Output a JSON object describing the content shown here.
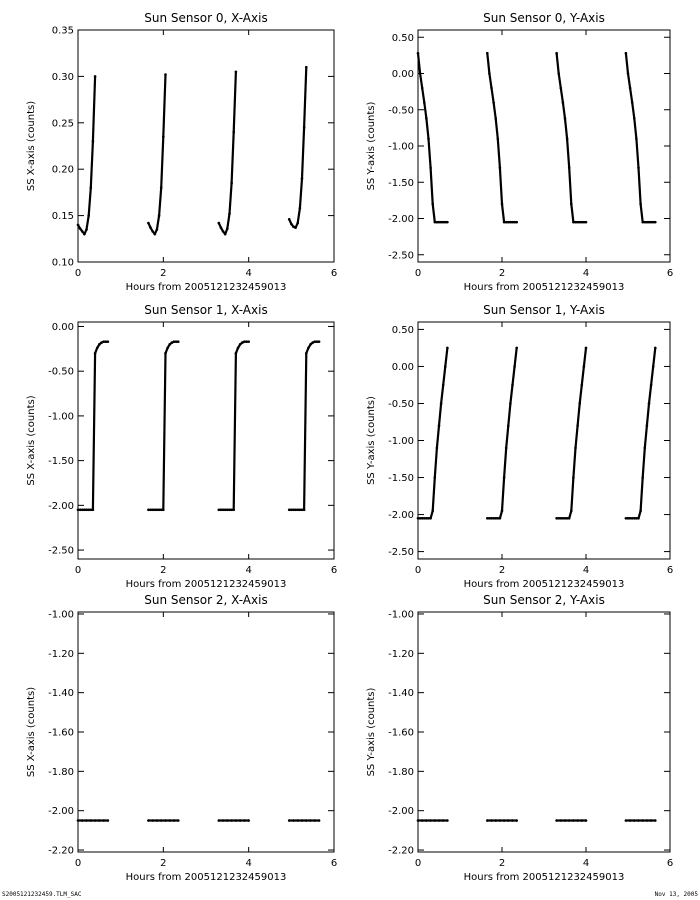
{
  "footer": {
    "file_label": "S2005121232459.TLM_SAC",
    "date_label": "Nov 13, 2005"
  },
  "chart_data": [
    {
      "type": "scatter",
      "title": "Sun Sensor 0, X-Axis",
      "xlabel": "Hours from 2005121232459013",
      "ylabel": "SS X-axis (counts)",
      "xlim": [
        0,
        6
      ],
      "ylim": [
        0.1,
        0.35
      ],
      "xticks": [
        0,
        2,
        4,
        6
      ],
      "xtick_labels": [
        "0",
        "2",
        "4",
        "6"
      ],
      "yticks": [
        0.1,
        0.15,
        0.2,
        0.25,
        0.3,
        0.35
      ],
      "ytick_labels": [
        "0.10",
        "0.15",
        "0.20",
        "0.25",
        "0.30",
        "0.35"
      ],
      "color": "#000000",
      "series": [
        {
          "x": [
            0.0,
            0.05,
            0.1,
            0.15,
            0.2,
            0.25,
            0.3,
            0.35,
            0.4
          ],
          "y": [
            0.14,
            0.136,
            0.133,
            0.13,
            0.135,
            0.15,
            0.18,
            0.23,
            0.3
          ]
        },
        {
          "x": [
            1.65,
            1.7,
            1.75,
            1.8,
            1.85,
            1.9,
            1.95,
            2.0,
            2.05
          ],
          "y": [
            0.142,
            0.137,
            0.133,
            0.13,
            0.135,
            0.15,
            0.18,
            0.235,
            0.302
          ]
        },
        {
          "x": [
            3.3,
            3.35,
            3.4,
            3.45,
            3.5,
            3.55,
            3.6,
            3.65,
            3.7
          ],
          "y": [
            0.142,
            0.137,
            0.133,
            0.13,
            0.136,
            0.152,
            0.185,
            0.24,
            0.305
          ]
        },
        {
          "x": [
            4.95,
            5.0,
            5.05,
            5.1,
            5.15,
            5.2,
            5.25,
            5.3,
            5.35
          ],
          "y": [
            0.146,
            0.141,
            0.138,
            0.137,
            0.142,
            0.158,
            0.19,
            0.245,
            0.31
          ]
        }
      ]
    },
    {
      "type": "scatter",
      "title": "Sun Sensor 0, Y-Axis",
      "xlabel": "Hours from 2005121232459013",
      "ylabel": "SS Y-axis (counts)",
      "xlim": [
        0,
        6
      ],
      "ylim": [
        -2.6,
        0.6
      ],
      "xticks": [
        0,
        2,
        4,
        6
      ],
      "xtick_labels": [
        "0",
        "2",
        "4",
        "6"
      ],
      "yticks": [
        -2.5,
        -2.0,
        -1.5,
        -1.0,
        -0.5,
        0.0,
        0.5
      ],
      "ytick_labels": [
        "-2.50",
        "-2.00",
        "-1.50",
        "-1.00",
        "-0.50",
        "0.00",
        "0.50"
      ],
      "color": "#000000",
      "series": [
        {
          "x": [
            0.0,
            0.05,
            0.1,
            0.15,
            0.2,
            0.25,
            0.3,
            0.35,
            0.4,
            0.45,
            0.5,
            0.55,
            0.6,
            0.65,
            0.7
          ],
          "y": [
            0.28,
            0.0,
            -0.2,
            -0.4,
            -0.62,
            -0.9,
            -1.3,
            -1.8,
            -2.05,
            -2.05,
            -2.05,
            -2.05,
            -2.05,
            -2.05,
            -2.05
          ]
        },
        {
          "x": [
            1.65,
            1.7,
            1.75,
            1.8,
            1.85,
            1.9,
            1.95,
            2.0,
            2.05,
            2.1,
            2.15,
            2.2,
            2.25,
            2.3,
            2.35
          ],
          "y": [
            0.28,
            0.0,
            -0.2,
            -0.4,
            -0.62,
            -0.9,
            -1.3,
            -1.8,
            -2.05,
            -2.05,
            -2.05,
            -2.05,
            -2.05,
            -2.05,
            -2.05
          ]
        },
        {
          "x": [
            3.3,
            3.35,
            3.4,
            3.45,
            3.5,
            3.55,
            3.6,
            3.65,
            3.7,
            3.75,
            3.8,
            3.85,
            3.9,
            3.95,
            4.0
          ],
          "y": [
            0.28,
            0.0,
            -0.2,
            -0.4,
            -0.62,
            -0.9,
            -1.3,
            -1.8,
            -2.05,
            -2.05,
            -2.05,
            -2.05,
            -2.05,
            -2.05,
            -2.05
          ]
        },
        {
          "x": [
            4.95,
            5.0,
            5.05,
            5.1,
            5.15,
            5.2,
            5.25,
            5.3,
            5.35,
            5.4,
            5.45,
            5.5,
            5.55,
            5.6,
            5.65
          ],
          "y": [
            0.28,
            0.0,
            -0.2,
            -0.4,
            -0.62,
            -0.9,
            -1.3,
            -1.8,
            -2.05,
            -2.05,
            -2.05,
            -2.05,
            -2.05,
            -2.05,
            -2.05
          ]
        }
      ]
    },
    {
      "type": "scatter",
      "title": "Sun Sensor 1, X-Axis",
      "xlabel": "Hours from 2005121232459013",
      "ylabel": "SS X-axis (counts)",
      "xlim": [
        0,
        6
      ],
      "ylim": [
        -2.6,
        0.05
      ],
      "xticks": [
        0,
        2,
        4,
        6
      ],
      "xtick_labels": [
        "0",
        "2",
        "4",
        "6"
      ],
      "yticks": [
        -2.5,
        -2.0,
        -1.5,
        -1.0,
        -0.5,
        0.0
      ],
      "ytick_labels": [
        "-2.50",
        "-2.00",
        "-1.50",
        "-1.00",
        "-0.50",
        "0.00"
      ],
      "color": "#000000",
      "series": [
        {
          "x": [
            0.0,
            0.05,
            0.1,
            0.15,
            0.2,
            0.25,
            0.3,
            0.35,
            0.4,
            0.45,
            0.5,
            0.55,
            0.6,
            0.65,
            0.7
          ],
          "y": [
            -2.05,
            -2.05,
            -2.05,
            -2.05,
            -2.05,
            -2.05,
            -2.05,
            -2.05,
            -0.3,
            -0.24,
            -0.2,
            -0.18,
            -0.17,
            -0.17,
            -0.17
          ]
        },
        {
          "x": [
            1.65,
            1.7,
            1.75,
            1.8,
            1.85,
            1.9,
            1.95,
            2.0,
            2.05,
            2.1,
            2.15,
            2.2,
            2.25,
            2.3,
            2.35
          ],
          "y": [
            -2.05,
            -2.05,
            -2.05,
            -2.05,
            -2.05,
            -2.05,
            -2.05,
            -2.05,
            -0.3,
            -0.24,
            -0.2,
            -0.18,
            -0.17,
            -0.17,
            -0.17
          ]
        },
        {
          "x": [
            3.3,
            3.35,
            3.4,
            3.45,
            3.5,
            3.55,
            3.6,
            3.65,
            3.7,
            3.75,
            3.8,
            3.85,
            3.9,
            3.95,
            4.0
          ],
          "y": [
            -2.05,
            -2.05,
            -2.05,
            -2.05,
            -2.05,
            -2.05,
            -2.05,
            -2.05,
            -0.3,
            -0.24,
            -0.2,
            -0.18,
            -0.17,
            -0.17,
            -0.17
          ]
        },
        {
          "x": [
            4.95,
            5.0,
            5.05,
            5.1,
            5.15,
            5.2,
            5.25,
            5.3,
            5.35,
            5.4,
            5.45,
            5.5,
            5.55,
            5.6,
            5.65
          ],
          "y": [
            -2.05,
            -2.05,
            -2.05,
            -2.05,
            -2.05,
            -2.05,
            -2.05,
            -2.05,
            -0.3,
            -0.24,
            -0.2,
            -0.18,
            -0.17,
            -0.17,
            -0.17
          ]
        }
      ]
    },
    {
      "type": "scatter",
      "title": "Sun Sensor 1, Y-Axis",
      "xlabel": "Hours from 2005121232459013",
      "ylabel": "SS Y-axis (counts)",
      "xlim": [
        0,
        6
      ],
      "ylim": [
        -2.6,
        0.6
      ],
      "xticks": [
        0,
        2,
        4,
        6
      ],
      "xtick_labels": [
        "0",
        "2",
        "4",
        "6"
      ],
      "yticks": [
        -2.5,
        -2.0,
        -1.5,
        -1.0,
        -0.5,
        0.0,
        0.5
      ],
      "ytick_labels": [
        "-2.50",
        "-2.00",
        "-1.50",
        "-1.00",
        "-0.50",
        "0.00",
        "0.50"
      ],
      "color": "#000000",
      "series": [
        {
          "x": [
            0.0,
            0.05,
            0.1,
            0.15,
            0.2,
            0.25,
            0.3,
            0.35,
            0.4,
            0.45,
            0.5,
            0.55,
            0.6,
            0.65,
            0.7
          ],
          "y": [
            -2.05,
            -2.05,
            -2.05,
            -2.05,
            -2.05,
            -2.05,
            -2.05,
            -1.95,
            -1.5,
            -1.1,
            -0.8,
            -0.5,
            -0.25,
            0.0,
            0.25
          ]
        },
        {
          "x": [
            1.65,
            1.7,
            1.75,
            1.8,
            1.85,
            1.9,
            1.95,
            2.0,
            2.05,
            2.1,
            2.15,
            2.2,
            2.25,
            2.3,
            2.35
          ],
          "y": [
            -2.05,
            -2.05,
            -2.05,
            -2.05,
            -2.05,
            -2.05,
            -2.05,
            -1.95,
            -1.5,
            -1.1,
            -0.8,
            -0.5,
            -0.25,
            0.0,
            0.25
          ]
        },
        {
          "x": [
            3.3,
            3.35,
            3.4,
            3.45,
            3.5,
            3.55,
            3.6,
            3.65,
            3.7,
            3.75,
            3.8,
            3.85,
            3.9,
            3.95,
            4.0
          ],
          "y": [
            -2.05,
            -2.05,
            -2.05,
            -2.05,
            -2.05,
            -2.05,
            -2.05,
            -1.95,
            -1.5,
            -1.1,
            -0.8,
            -0.5,
            -0.25,
            0.0,
            0.25
          ]
        },
        {
          "x": [
            4.95,
            5.0,
            5.05,
            5.1,
            5.15,
            5.2,
            5.25,
            5.3,
            5.35,
            5.4,
            5.45,
            5.5,
            5.55,
            5.6,
            5.65
          ],
          "y": [
            -2.05,
            -2.05,
            -2.05,
            -2.05,
            -2.05,
            -2.05,
            -2.05,
            -1.95,
            -1.5,
            -1.1,
            -0.8,
            -0.5,
            -0.25,
            0.0,
            0.25
          ]
        }
      ]
    },
    {
      "type": "scatter",
      "title": "Sun Sensor 2, X-Axis",
      "xlabel": "Hours from 2005121232459013",
      "ylabel": "SS X-axis (counts)",
      "xlim": [
        0,
        6
      ],
      "ylim": [
        -2.21,
        -0.99
      ],
      "xticks": [
        0,
        2,
        4,
        6
      ],
      "xtick_labels": [
        "0",
        "2",
        "4",
        "6"
      ],
      "yticks": [
        -2.2,
        -2.0,
        -1.8,
        -1.6,
        -1.4,
        -1.2,
        -1.0
      ],
      "ytick_labels": [
        "-2.20",
        "-2.00",
        "-1.80",
        "-1.60",
        "-1.40",
        "-1.20",
        "-1.00"
      ],
      "color": "#000000",
      "series": [
        {
          "x": [
            0.0,
            0.1,
            0.2,
            0.3,
            0.4,
            0.5,
            0.6,
            0.7
          ],
          "y": [
            -2.05,
            -2.05,
            -2.05,
            -2.05,
            -2.05,
            -2.05,
            -2.05,
            -2.05
          ]
        },
        {
          "x": [
            1.65,
            1.75,
            1.85,
            1.95,
            2.05,
            2.15,
            2.25,
            2.35
          ],
          "y": [
            -2.05,
            -2.05,
            -2.05,
            -2.05,
            -2.05,
            -2.05,
            -2.05,
            -2.05
          ]
        },
        {
          "x": [
            3.3,
            3.4,
            3.5,
            3.6,
            3.7,
            3.8,
            3.9,
            4.0
          ],
          "y": [
            -2.05,
            -2.05,
            -2.05,
            -2.05,
            -2.05,
            -2.05,
            -2.05,
            -2.05
          ]
        },
        {
          "x": [
            4.95,
            5.05,
            5.15,
            5.25,
            5.35,
            5.45,
            5.55,
            5.65
          ],
          "y": [
            -2.05,
            -2.05,
            -2.05,
            -2.05,
            -2.05,
            -2.05,
            -2.05,
            -2.05
          ]
        }
      ]
    },
    {
      "type": "scatter",
      "title": "Sun Sensor 2, Y-Axis",
      "xlabel": "Hours from 2005121232459013",
      "ylabel": "SS Y-axis (counts)",
      "xlim": [
        0,
        6
      ],
      "ylim": [
        -2.21,
        -0.99
      ],
      "xticks": [
        0,
        2,
        4,
        6
      ],
      "xtick_labels": [
        "0",
        "2",
        "4",
        "6"
      ],
      "yticks": [
        -2.2,
        -2.0,
        -1.8,
        -1.6,
        -1.4,
        -1.2,
        -1.0
      ],
      "ytick_labels": [
        "-2.20",
        "-2.00",
        "-1.80",
        "-1.60",
        "-1.40",
        "-1.20",
        "-1.00"
      ],
      "color": "#000000",
      "series": [
        {
          "x": [
            0.0,
            0.1,
            0.2,
            0.3,
            0.4,
            0.5,
            0.6,
            0.7
          ],
          "y": [
            -2.05,
            -2.05,
            -2.05,
            -2.05,
            -2.05,
            -2.05,
            -2.05,
            -2.05
          ]
        },
        {
          "x": [
            1.65,
            1.75,
            1.85,
            1.95,
            2.05,
            2.15,
            2.25,
            2.35
          ],
          "y": [
            -2.05,
            -2.05,
            -2.05,
            -2.05,
            -2.05,
            -2.05,
            -2.05,
            -2.05
          ]
        },
        {
          "x": [
            3.3,
            3.4,
            3.5,
            3.6,
            3.7,
            3.8,
            3.9,
            4.0
          ],
          "y": [
            -2.05,
            -2.05,
            -2.05,
            -2.05,
            -2.05,
            -2.05,
            -2.05,
            -2.05
          ]
        },
        {
          "x": [
            4.95,
            5.05,
            5.15,
            5.25,
            5.35,
            5.45,
            5.55,
            5.65
          ],
          "y": [
            -2.05,
            -2.05,
            -2.05,
            -2.05,
            -2.05,
            -2.05,
            -2.05,
            -2.05
          ]
        }
      ]
    }
  ]
}
